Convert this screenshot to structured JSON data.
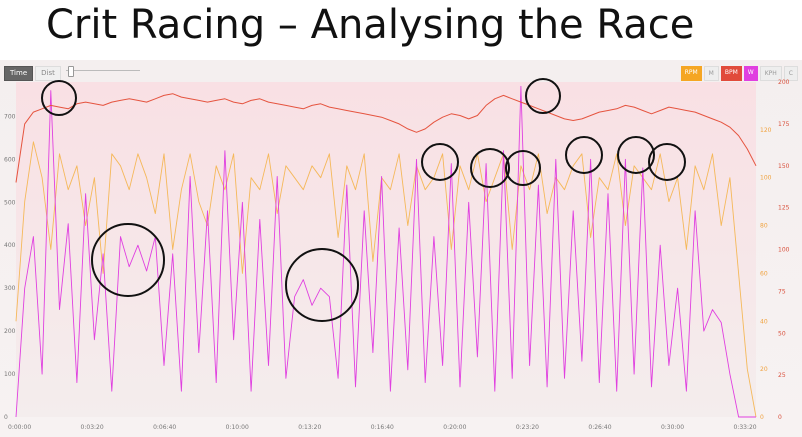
{
  "title": "Crit Racing – Analysing the Race",
  "toolbar": {
    "time_label": "Time",
    "dist_label": "Dist",
    "legend": [
      {
        "label": "RPM",
        "color": "#f5a623"
      },
      {
        "label": "M",
        "color": ""
      },
      {
        "label": "BPM",
        "color": "#e14b3b"
      },
      {
        "label": "W",
        "color": "#e040e0"
      },
      {
        "label": "KPH",
        "color": ""
      },
      {
        "label": "C",
        "color": ""
      }
    ]
  },
  "colors": {
    "power": "#e040e0",
    "cadence": "#f5b041",
    "heart_rate": "#e5543f"
  },
  "chart_data": {
    "type": "line",
    "x_ticks": [
      "0:00:00",
      "0:03:20",
      "0:06:40",
      "0:10:00",
      "0:13:20",
      "0:16:40",
      "0:20:00",
      "0:23:20",
      "0:26:40",
      "0:30:00",
      "0:33:20"
    ],
    "x_range_seconds": [
      0,
      2040
    ],
    "y_left": {
      "label": "W",
      "ticks": [
        "0",
        "100",
        "200",
        "300",
        "400",
        "500",
        "600",
        "700"
      ],
      "range": [
        0,
        780
      ]
    },
    "y_right_hr": {
      "label": "BPM",
      "ticks": [
        "0",
        "25",
        "50",
        "75",
        "100",
        "125",
        "150",
        "175",
        "200"
      ],
      "range": [
        0,
        200
      ]
    },
    "y_right_cad": {
      "label": "RPM",
      "ticks": [
        "0",
        "20",
        "40",
        "60",
        "80",
        "100",
        "120"
      ],
      "range": [
        0,
        140
      ]
    },
    "series": [
      {
        "name": "W",
        "axis": "left",
        "values_sampled_every_24s": [
          0,
          300,
          420,
          100,
          760,
          250,
          450,
          80,
          520,
          180,
          380,
          60,
          420,
          350,
          400,
          340,
          420,
          120,
          380,
          60,
          560,
          150,
          480,
          80,
          620,
          180,
          500,
          60,
          460,
          120,
          560,
          90,
          280,
          320,
          260,
          300,
          280,
          90,
          540,
          70,
          480,
          150,
          560,
          60,
          440,
          110,
          600,
          80,
          420,
          120,
          590,
          70,
          500,
          140,
          590,
          60,
          620,
          90,
          770,
          120,
          540,
          70,
          600,
          90,
          480,
          130,
          600,
          80,
          520,
          60,
          600,
          100,
          580,
          70,
          400,
          120,
          300,
          60,
          480,
          200,
          250,
          220,
          100,
          0,
          0,
          0
        ]
      },
      {
        "name": "BPM",
        "axis": "right_hr",
        "values_sampled_every_24s": [
          140,
          175,
          182,
          184,
          186,
          185,
          184,
          187,
          188,
          187,
          186,
          188,
          189,
          190,
          189,
          188,
          190,
          192,
          193,
          191,
          190,
          189,
          188,
          189,
          190,
          188,
          187,
          189,
          190,
          188,
          187,
          186,
          185,
          184,
          186,
          187,
          185,
          184,
          183,
          182,
          181,
          180,
          179,
          177,
          175,
          172,
          170,
          172,
          176,
          179,
          181,
          180,
          178,
          180,
          186,
          190,
          192,
          190,
          188,
          186,
          184,
          182,
          180,
          178,
          177,
          178,
          180,
          182,
          183,
          184,
          186,
          185,
          183,
          181,
          183,
          185,
          184,
          183,
          182,
          180,
          178,
          176,
          173,
          168,
          160,
          150
        ]
      },
      {
        "name": "RPM",
        "axis": "right_cad",
        "values_sampled_every_24s": [
          40,
          90,
          115,
          100,
          70,
          110,
          95,
          105,
          80,
          100,
          60,
          110,
          105,
          95,
          110,
          100,
          85,
          110,
          70,
          95,
          110,
          90,
          80,
          105,
          95,
          110,
          60,
          100,
          95,
          110,
          85,
          105,
          100,
          95,
          105,
          100,
          110,
          75,
          105,
          95,
          110,
          65,
          100,
          95,
          110,
          80,
          105,
          95,
          100,
          110,
          70,
          105,
          95,
          110,
          90,
          100,
          110,
          70,
          105,
          95,
          110,
          85,
          100,
          95,
          105,
          110,
          75,
          100,
          95,
          110,
          80,
          105,
          100,
          95,
          110,
          90,
          100,
          70,
          105,
          95,
          110,
          80,
          100,
          60,
          20,
          0
        ]
      }
    ]
  }
}
